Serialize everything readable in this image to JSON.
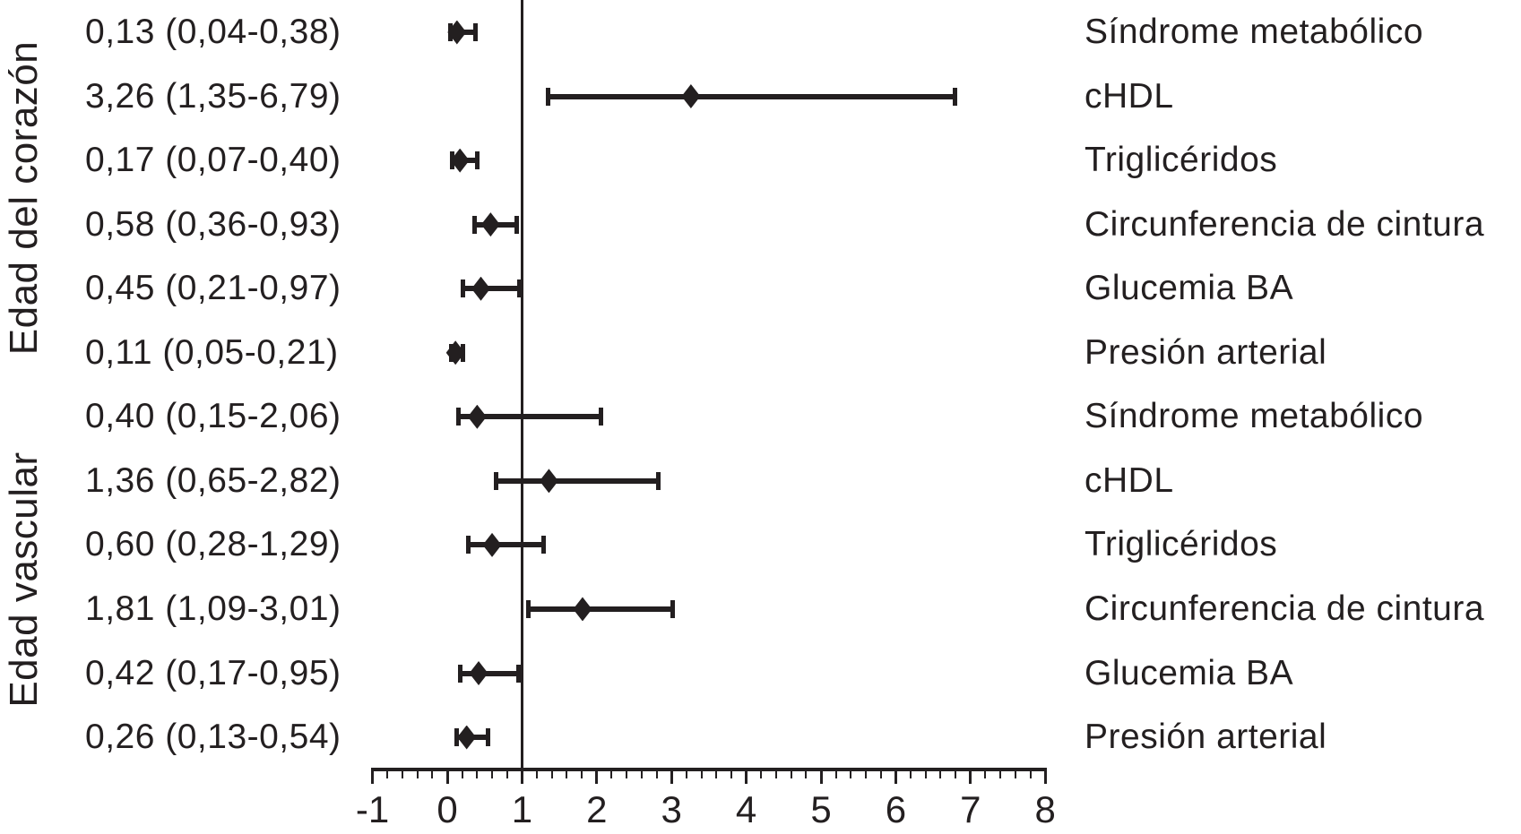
{
  "figure": {
    "background": "#ffffff",
    "ink_color": "#231f20"
  },
  "chart_data": {
    "type": "forest",
    "title": "",
    "x_axis": {
      "min": -1,
      "max": 8,
      "major_tick_step": 1,
      "minor_tick_step": 0.2,
      "tick_labels": [
        "-1",
        "0",
        "1",
        "2",
        "3",
        "4",
        "5",
        "6",
        "7",
        "8"
      ],
      "reference_line_x": 1,
      "grid": false
    },
    "legend": null,
    "groups": [
      {
        "label": "Edad del corazón",
        "rows": [
          {
            "value_label": "0,13 (0,04-0,38)",
            "variable": "Síndrome metabólico",
            "estimate": 0.13,
            "ci_low": 0.04,
            "ci_high": 0.38
          },
          {
            "value_label": "3,26 (1,35-6,79)",
            "variable": "cHDL",
            "estimate": 3.26,
            "ci_low": 1.35,
            "ci_high": 6.79
          },
          {
            "value_label": "0,17 (0,07-0,40)",
            "variable": "Triglicéridos",
            "estimate": 0.17,
            "ci_low": 0.07,
            "ci_high": 0.4
          },
          {
            "value_label": "0,58 (0,36-0,93)",
            "variable": "Circunferencia de cintura",
            "estimate": 0.58,
            "ci_low": 0.36,
            "ci_high": 0.93
          },
          {
            "value_label": "0,45 (0,21-0,97)",
            "variable": "Glucemia BA",
            "estimate": 0.45,
            "ci_low": 0.21,
            "ci_high": 0.97
          },
          {
            "value_label": "0,11 (0,05-0,21)",
            "variable": "Presión arterial",
            "estimate": 0.11,
            "ci_low": 0.05,
            "ci_high": 0.21
          }
        ]
      },
      {
        "label": "Edad vascular",
        "rows": [
          {
            "value_label": "0,40 (0,15-2,06)",
            "variable": "Síndrome metabólico",
            "estimate": 0.4,
            "ci_low": 0.15,
            "ci_high": 2.06
          },
          {
            "value_label": "1,36 (0,65-2,82)",
            "variable": "cHDL",
            "estimate": 1.36,
            "ci_low": 0.65,
            "ci_high": 2.82
          },
          {
            "value_label": "0,60 (0,28-1,29)",
            "variable": "Triglicéridos",
            "estimate": 0.6,
            "ci_low": 0.28,
            "ci_high": 1.29
          },
          {
            "value_label": "1,81 (1,09-3,01)",
            "variable": "Circunferencia de cintura",
            "estimate": 1.81,
            "ci_low": 1.09,
            "ci_high": 3.01
          },
          {
            "value_label": "0,42 (0,17-0,95)",
            "variable": "Glucemia BA",
            "estimate": 0.42,
            "ci_low": 0.17,
            "ci_high": 0.95
          },
          {
            "value_label": "0,26 (0,13-0,54)",
            "variable": "Presión arterial",
            "estimate": 0.26,
            "ci_low": 0.13,
            "ci_high": 0.54
          }
        ]
      }
    ]
  }
}
